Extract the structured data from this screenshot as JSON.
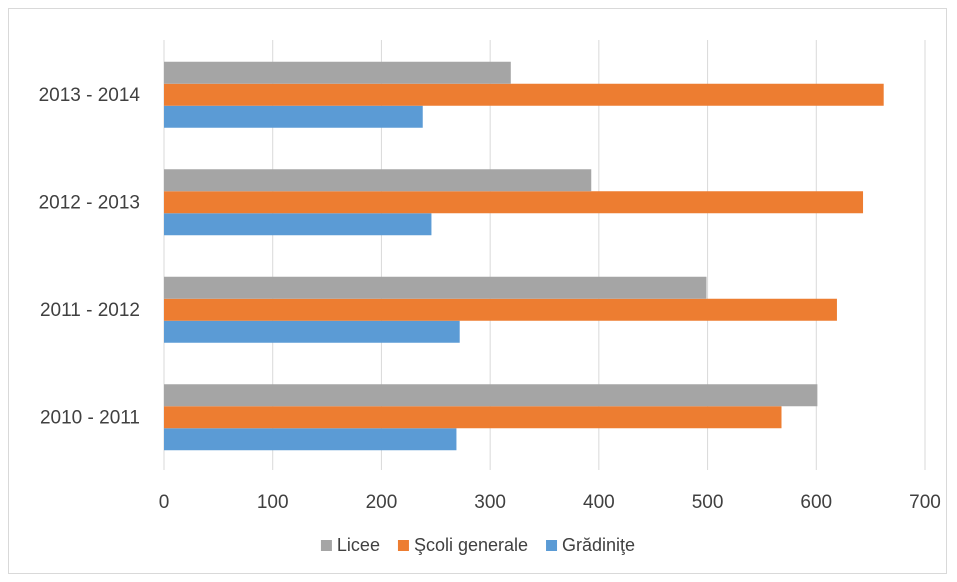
{
  "chart_data": {
    "type": "bar",
    "orientation": "horizontal",
    "title": "",
    "xlabel": "",
    "ylabel": "",
    "categories": [
      "2010 - 2011",
      "2011 - 2012",
      "2012 - 2013",
      "2013 - 2014"
    ],
    "series": [
      {
        "name": "Grădiniţe",
        "color": "#5b9bd5",
        "values": [
          269,
          272,
          246,
          238
        ]
      },
      {
        "name": "Şcoli generale",
        "color": "#ed7d31",
        "values": [
          568,
          619,
          643,
          662
        ]
      },
      {
        "name": "Licee",
        "color": "#a5a5a5",
        "values": [
          601,
          499,
          393,
          319
        ]
      }
    ],
    "xlim": [
      0,
      700
    ],
    "xticks": [
      "0",
      "100",
      "200",
      "300",
      "400",
      "500",
      "600",
      "700"
    ],
    "grid": "vertical",
    "legend": {
      "position": "bottom",
      "order": [
        "Licee",
        "Şcoli generale",
        "Grădiniţe"
      ]
    }
  }
}
